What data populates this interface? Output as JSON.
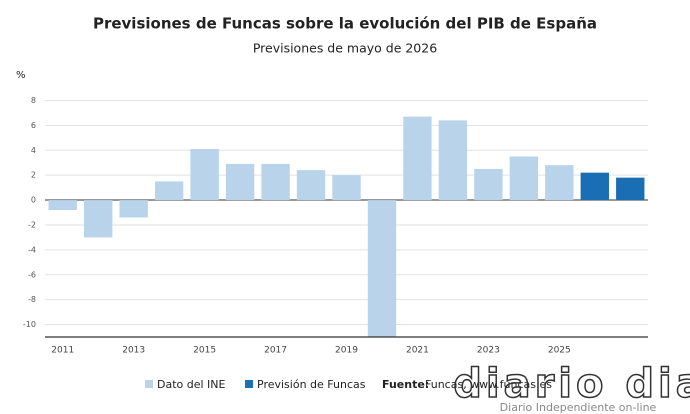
{
  "chart_data": {
    "type": "bar",
    "title": "Previsiones de Funcas sobre la evolución del PIB de España",
    "subtitle": "Previsiones de mayo de 2026",
    "y_label": "%",
    "categories": [
      "2011",
      null,
      "2013",
      null,
      "2015",
      null,
      "2017",
      null,
      "2019",
      null,
      "2021",
      null,
      "2023",
      null,
      "2025",
      null,
      null
    ],
    "series": [
      {
        "name": "Dato del INE",
        "color": "#b9d3ea",
        "values": [
          -0.8,
          -3.0,
          -1.4,
          1.5,
          4.1,
          2.9,
          2.9,
          2.4,
          2.0,
          -11.2,
          6.7,
          6.4,
          2.5,
          3.5,
          2.8,
          null,
          null
        ]
      },
      {
        "name": "Previsión de Funcas",
        "color": "#1a6eb4",
        "values": [
          null,
          null,
          null,
          null,
          null,
          null,
          null,
          null,
          null,
          null,
          null,
          null,
          null,
          null,
          null,
          2.2,
          1.8
        ]
      }
    ],
    "ylim": [
      -11,
      9
    ],
    "yticks": [
      -10,
      -8,
      -6,
      -4,
      -2,
      0,
      2,
      4,
      6,
      8
    ],
    "grid": true,
    "source_label": "Fuente:",
    "source": "Funcas, www.funcas.es",
    "watermark": "diario dia",
    "watermark_subtitle": "Diario Independiente on-line"
  }
}
